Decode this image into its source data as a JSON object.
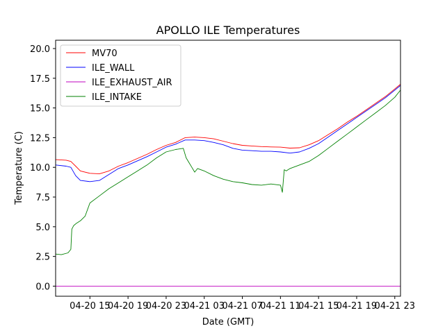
{
  "chart_data": {
    "type": "line",
    "title": "APOLLO ILE Temperatures",
    "xlabel": "Date (GMT)",
    "ylabel": "Temperature (C)",
    "x_unit": "hours since 04-20 00:00 GMT",
    "xlim": [
      11.4,
      47.6
    ],
    "ylim": [
      -0.85,
      20.7
    ],
    "x_ticks": [
      {
        "value": 15,
        "label": "04-20 15"
      },
      {
        "value": 19,
        "label": "04-20 19"
      },
      {
        "value": 23,
        "label": "04-20 23"
      },
      {
        "value": 27,
        "label": "04-21 03"
      },
      {
        "value": 31,
        "label": "04-21 07"
      },
      {
        "value": 35,
        "label": "04-21 11"
      },
      {
        "value": 39,
        "label": "04-21 15"
      },
      {
        "value": 43,
        "label": "04-21 19"
      },
      {
        "value": 47,
        "label": "04-21 23"
      }
    ],
    "y_ticks": [
      {
        "value": 0,
        "label": "0.0"
      },
      {
        "value": 2.5,
        "label": "2.5"
      },
      {
        "value": 5,
        "label": "5.0"
      },
      {
        "value": 7.5,
        "label": "7.5"
      },
      {
        "value": 10,
        "label": "10.0"
      },
      {
        "value": 12.5,
        "label": "12.5"
      },
      {
        "value": 15,
        "label": "15.0"
      },
      {
        "value": 17.5,
        "label": "17.5"
      },
      {
        "value": 20,
        "label": "20.0"
      }
    ],
    "grid": false,
    "legend_position": "top-left",
    "series": [
      {
        "name": "MV70",
        "color": "#ff0000",
        "x": [
          11.4,
          12.5,
          13.0,
          13.5,
          14.0,
          15.0,
          16.0,
          17.0,
          18.0,
          19.0,
          20.0,
          21.0,
          22.0,
          23.0,
          24.0,
          25.0,
          26.0,
          27.0,
          28.0,
          29.0,
          30.0,
          31.0,
          32.0,
          33.0,
          34.0,
          35.0,
          36.0,
          37.0,
          38.0,
          39.0,
          40.0,
          41.0,
          42.0,
          43.0,
          44.0,
          45.0,
          46.0,
          47.0,
          47.6
        ],
        "y": [
          10.65,
          10.6,
          10.5,
          10.1,
          9.7,
          9.5,
          9.45,
          9.7,
          10.1,
          10.4,
          10.75,
          11.1,
          11.5,
          11.85,
          12.1,
          12.5,
          12.55,
          12.5,
          12.4,
          12.2,
          12.0,
          11.85,
          11.8,
          11.75,
          11.72,
          11.7,
          11.62,
          11.65,
          11.9,
          12.25,
          12.75,
          13.25,
          13.8,
          14.3,
          14.85,
          15.4,
          15.95,
          16.6,
          17.0
        ]
      },
      {
        "name": "ILE_WALL",
        "color": "#0000ff",
        "x": [
          11.4,
          12.5,
          13.0,
          13.5,
          14.0,
          15.0,
          16.0,
          17.0,
          18.0,
          19.0,
          20.0,
          21.0,
          22.0,
          23.0,
          24.0,
          25.0,
          26.0,
          27.0,
          28.0,
          29.0,
          30.0,
          31.0,
          32.0,
          33.0,
          34.0,
          35.0,
          36.0,
          37.0,
          38.0,
          39.0,
          40.0,
          41.0,
          42.0,
          43.0,
          44.0,
          45.0,
          46.0,
          47.0,
          47.6
        ],
        "y": [
          10.2,
          10.1,
          10.0,
          9.3,
          8.9,
          8.8,
          8.9,
          9.4,
          9.9,
          10.2,
          10.55,
          10.9,
          11.3,
          11.7,
          11.95,
          12.3,
          12.3,
          12.25,
          12.1,
          11.9,
          11.6,
          11.45,
          11.4,
          11.35,
          11.35,
          11.3,
          11.2,
          11.3,
          11.6,
          12.0,
          12.55,
          13.1,
          13.65,
          14.2,
          14.75,
          15.3,
          15.85,
          16.5,
          16.9
        ]
      },
      {
        "name": "ILE_EXHAUST_AIR",
        "color": "#bf00bf",
        "x": [
          11.4,
          47.6
        ],
        "y": [
          0.0,
          0.0
        ]
      },
      {
        "name": "ILE_INTAKE",
        "color": "#008000",
        "x": [
          11.4,
          12.0,
          12.7,
          13.0,
          13.1,
          13.3,
          13.6,
          14.0,
          14.5,
          15.0,
          16.0,
          17.0,
          18.0,
          19.0,
          20.0,
          21.0,
          22.0,
          23.0,
          24.0,
          24.8,
          25.1,
          25.4,
          25.7,
          26.0,
          26.3,
          27.0,
          28.0,
          29.0,
          30.0,
          31.0,
          32.0,
          33.0,
          34.0,
          35.0,
          35.2,
          35.4,
          35.6,
          36.0,
          37.0,
          38.0,
          39.0,
          40.0,
          41.0,
          42.0,
          43.0,
          44.0,
          45.0,
          46.0,
          47.0,
          47.6
        ],
        "y": [
          2.7,
          2.65,
          2.8,
          3.1,
          4.8,
          5.1,
          5.3,
          5.5,
          5.9,
          7.0,
          7.6,
          8.2,
          8.7,
          9.2,
          9.7,
          10.2,
          10.8,
          11.3,
          11.5,
          11.6,
          10.8,
          10.4,
          10.0,
          9.6,
          9.9,
          9.7,
          9.3,
          9.0,
          8.8,
          8.7,
          8.55,
          8.5,
          8.6,
          8.5,
          7.9,
          9.8,
          9.7,
          9.9,
          10.2,
          10.5,
          11.0,
          11.6,
          12.2,
          12.8,
          13.4,
          14.0,
          14.6,
          15.2,
          15.9,
          16.5
        ]
      }
    ]
  }
}
